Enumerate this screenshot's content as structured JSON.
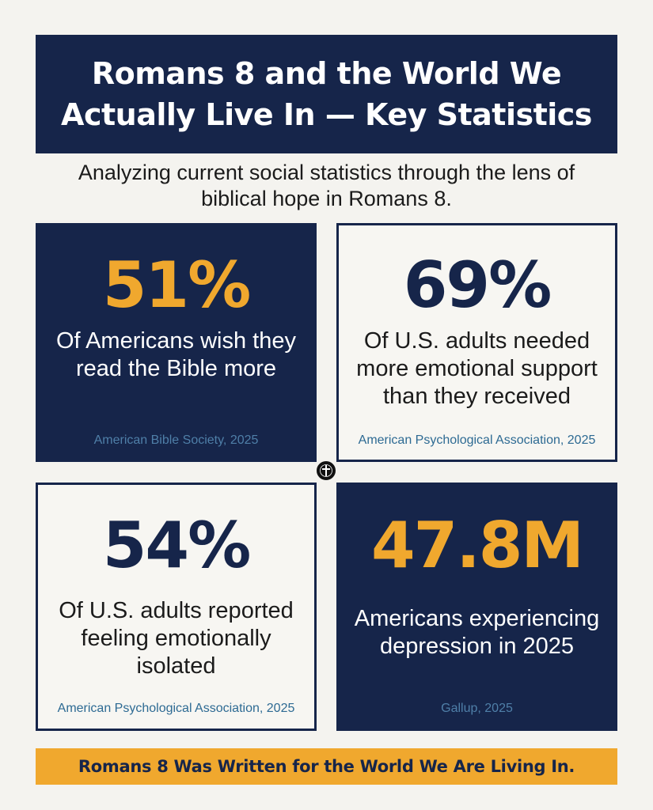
{
  "header": {
    "title_line1": "Romans 8 and the World We",
    "title_line2": "Actually Live In — Key Statistics",
    "subtitle_line1": "Analyzing current social statistics through the lens of",
    "subtitle_line2": "biblical hope in Romans 8."
  },
  "cards": [
    {
      "stat": "51%",
      "desc_lines": [
        "Of Americans wish they",
        "read the Bible more"
      ],
      "source": "American Bible Society, 2025"
    },
    {
      "stat": "69%",
      "desc_lines": [
        "Of U.S. adults needed",
        "more emotional support",
        "than they received"
      ],
      "source": "American Psychological Association, 2025"
    },
    {
      "stat": "54%",
      "desc_lines": [
        "Of U.S. adults reported",
        "feeling emotionally",
        "isolated"
      ],
      "source": "American Psychological Association, 2025"
    },
    {
      "stat": "47.8M",
      "desc_lines": [
        "Americans experiencing",
        "depression in 2025"
      ],
      "source": "Gallup, 2025"
    }
  ],
  "badge": {
    "icon": "cross-emblem-icon"
  },
  "footer": {
    "banner_text": "Romans 8 Was Written for the World We Are Living In."
  },
  "colors": {
    "navy": "#16254a",
    "gold": "#f0a82e",
    "background": "#f4f3ef",
    "source_blue": "#2d6a93"
  }
}
